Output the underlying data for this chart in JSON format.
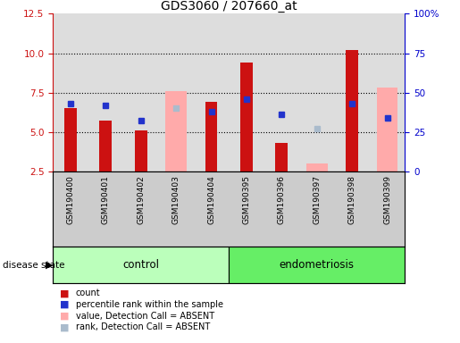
{
  "title": "GDS3060 / 207660_at",
  "samples": [
    "GSM190400",
    "GSM190401",
    "GSM190402",
    "GSM190403",
    "GSM190404",
    "GSM190395",
    "GSM190396",
    "GSM190397",
    "GSM190398",
    "GSM190399"
  ],
  "groups": [
    "control",
    "endometriosis"
  ],
  "ylim_left": [
    2.5,
    12.5
  ],
  "ylim_right": [
    0,
    100
  ],
  "yticks_left": [
    2.5,
    5.0,
    7.5,
    10.0,
    12.5
  ],
  "yticks_right": [
    0,
    25,
    50,
    75,
    100
  ],
  "ytick_labels_right": [
    "0",
    "25",
    "50",
    "75",
    "100%"
  ],
  "red_bars": [
    6.5,
    5.7,
    5.1,
    2.5,
    6.9,
    9.4,
    4.3,
    2.5,
    10.2,
    2.5
  ],
  "blue_squares": [
    6.8,
    6.7,
    5.7,
    null,
    6.3,
    7.1,
    6.1,
    null,
    6.8,
    5.9
  ],
  "pink_bars": [
    null,
    null,
    null,
    7.6,
    null,
    null,
    null,
    3.0,
    null,
    7.8
  ],
  "lightblue_squares": [
    null,
    null,
    null,
    6.5,
    null,
    null,
    null,
    5.2,
    null,
    5.9
  ],
  "red_bar_color": "#cc1111",
  "blue_square_color": "#2233cc",
  "pink_bar_color": "#ffaaaa",
  "lightblue_square_color": "#aabbcc",
  "control_group_color": "#bbffbb",
  "endo_group_color": "#66ee66",
  "left_axis_color": "#cc1111",
  "right_axis_color": "#0000cc",
  "bar_width": 0.35,
  "pink_bar_width": 0.6,
  "plot_bg_color": "#dddddd",
  "xlabels_bg_color": "#cccccc"
}
